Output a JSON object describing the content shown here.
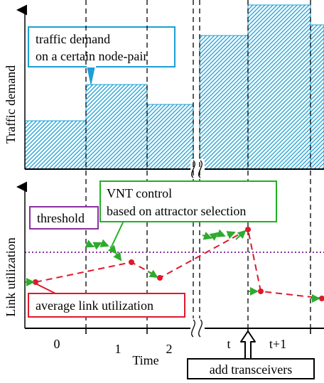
{
  "top_panel": {
    "ylabel": "Traffic demand",
    "callout": {
      "line1": "traffic demand",
      "line2": "on a certain node-pair",
      "border_color": "#1a9fd6"
    },
    "bar_color": "#1a9fd6"
  },
  "bottom_panel": {
    "ylabel": "Link utilization",
    "threshold_label": "threshold",
    "threshold_color": "#8b2fa0",
    "vnt_callout": {
      "line1": "VNT control",
      "line2": "based on attractor selection",
      "border_color": "#22b022"
    },
    "avg_callout": {
      "text": "average link utilization",
      "border_color": "#e0182b"
    },
    "avg_line_color": "#e0182b",
    "vnt_arrow_color": "#2eaa2e"
  },
  "x_axis": {
    "ticks": [
      "0",
      "1",
      "2",
      "t",
      "t+1"
    ],
    "label": "Time"
  },
  "bottom_note": "add transceivers"
}
